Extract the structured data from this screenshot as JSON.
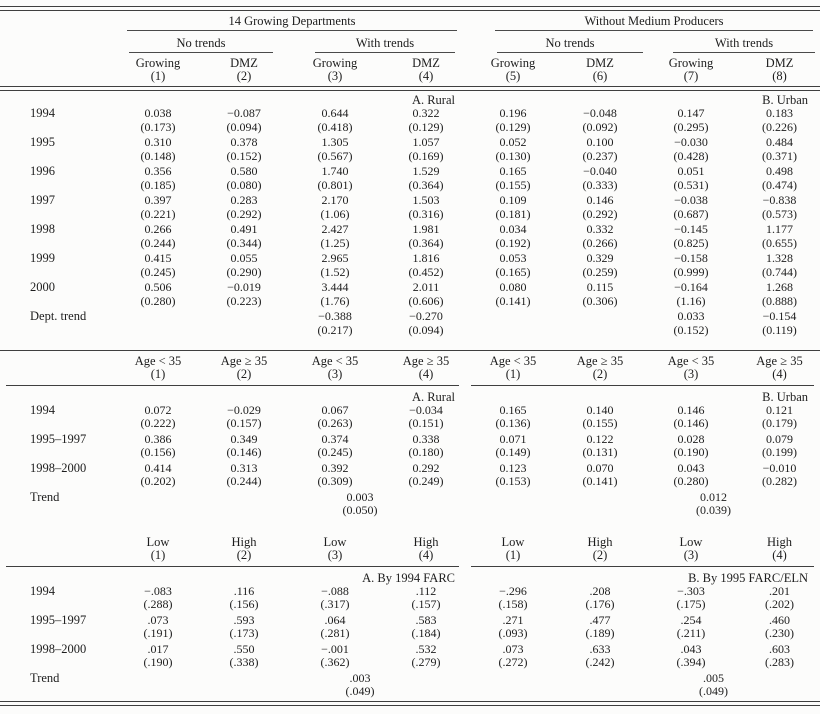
{
  "table": {
    "group_headers": [
      "14 Growing Departments",
      "Without Medium Producers"
    ],
    "subgroup_headers": [
      "No trends",
      "With trends",
      "No trends",
      "With trends"
    ],
    "sections": [
      {
        "col_headers": [
          [
            "Growing",
            "(1)"
          ],
          [
            "DMZ",
            "(2)"
          ],
          [
            "Growing",
            "(3)"
          ],
          [
            "DMZ",
            "(4)"
          ],
          [
            "Growing",
            "(5)"
          ],
          [
            "DMZ",
            "(6)"
          ],
          [
            "Growing",
            "(7)"
          ],
          [
            "DMZ",
            "(8)"
          ]
        ],
        "panel_left": "A. Rural",
        "panel_right": "B. Urban",
        "rows": [
          {
            "label": "1994",
            "coefs": [
              "0.038",
              "−0.087",
              "0.644",
              "0.322",
              "0.196",
              "−0.048",
              "0.147",
              "0.183"
            ],
            "ses": [
              "(0.173)",
              "(0.094)",
              "(0.418)",
              "(0.129)",
              "(0.129)",
              "(0.092)",
              "(0.295)",
              "(0.226)"
            ]
          },
          {
            "label": "1995",
            "coefs": [
              "0.310",
              "0.378",
              "1.305",
              "1.057",
              "0.052",
              "0.100",
              "−0.030",
              "0.484"
            ],
            "ses": [
              "(0.148)",
              "(0.152)",
              "(0.567)",
              "(0.169)",
              "(0.130)",
              "(0.237)",
              "(0.428)",
              "(0.371)"
            ]
          },
          {
            "label": "1996",
            "coefs": [
              "0.356",
              "0.580",
              "1.740",
              "1.529",
              "0.165",
              "−0.040",
              "0.051",
              "0.498"
            ],
            "ses": [
              "(0.185)",
              "(0.080)",
              "(0.801)",
              "(0.364)",
              "(0.155)",
              "(0.333)",
              "(0.531)",
              "(0.474)"
            ]
          },
          {
            "label": "1997",
            "coefs": [
              "0.397",
              "0.283",
              "2.170",
              "1.503",
              "0.109",
              "0.146",
              "−0.038",
              "−0.838"
            ],
            "ses": [
              "(0.221)",
              "(0.292)",
              "(1.06)",
              "(0.316)",
              "(0.181)",
              "(0.292)",
              "(0.687)",
              "(0.573)"
            ]
          },
          {
            "label": "1998",
            "coefs": [
              "0.266",
              "0.491",
              "2.427",
              "1.981",
              "0.034",
              "0.332",
              "−0.145",
              "1.177"
            ],
            "ses": [
              "(0.244)",
              "(0.344)",
              "(1.25)",
              "(0.364)",
              "(0.192)",
              "(0.266)",
              "(0.825)",
              "(0.655)"
            ]
          },
          {
            "label": "1999",
            "coefs": [
              "0.415",
              "0.055",
              "2.965",
              "1.816",
              "0.053",
              "0.329",
              "−0.158",
              "1.328"
            ],
            "ses": [
              "(0.245)",
              "(0.290)",
              "(1.52)",
              "(0.452)",
              "(0.165)",
              "(0.259)",
              "(0.999)",
              "(0.744)"
            ]
          },
          {
            "label": "2000",
            "coefs": [
              "0.506",
              "−0.019",
              "3.444",
              "2.011",
              "0.080",
              "0.115",
              "−0.164",
              "1.268"
            ],
            "ses": [
              "(0.280)",
              "(0.223)",
              "(1.76)",
              "(0.606)",
              "(0.141)",
              "(0.306)",
              "(1.16)",
              "(0.888)"
            ]
          },
          {
            "label": "Dept. trend",
            "coefs": [
              "",
              "",
              "−0.388",
              "−0.270",
              "",
              "",
              "0.033",
              "−0.154"
            ],
            "ses": [
              "",
              "",
              "(0.217)",
              "(0.094)",
              "",
              "",
              "(0.152)",
              "(0.119)"
            ]
          }
        ]
      },
      {
        "col_headers": [
          [
            "Age < 35",
            "(1)"
          ],
          [
            "Age ≥ 35",
            "(2)"
          ],
          [
            "Age < 35",
            "(3)"
          ],
          [
            "Age ≥ 35",
            "(4)"
          ],
          [
            "Age < 35",
            "(1)"
          ],
          [
            "Age ≥ 35",
            "(2)"
          ],
          [
            "Age < 35",
            "(3)"
          ],
          [
            "Age ≥ 35",
            "(4)"
          ]
        ],
        "panel_left": "A. Rural",
        "panel_right": "B. Urban",
        "rows": [
          {
            "label": "1994",
            "coefs": [
              "0.072",
              "−0.029",
              "0.067",
              "−0.034",
              "0.165",
              "0.140",
              "0.146",
              "0.121"
            ],
            "ses": [
              "(0.222)",
              "(0.157)",
              "(0.263)",
              "(0.151)",
              "(0.136)",
              "(0.155)",
              "(0.146)",
              "(0.179)"
            ]
          },
          {
            "label": "1995–1997",
            "coefs": [
              "0.386",
              "0.349",
              "0.374",
              "0.338",
              "0.071",
              "0.122",
              "0.028",
              "0.079"
            ],
            "ses": [
              "(0.156)",
              "(0.146)",
              "(0.245)",
              "(0.180)",
              "(0.149)",
              "(0.131)",
              "(0.190)",
              "(0.199)"
            ]
          },
          {
            "label": "1998–2000",
            "coefs": [
              "0.414",
              "0.313",
              "0.392",
              "0.292",
              "0.123",
              "0.070",
              "0.043",
              "−0.010"
            ],
            "ses": [
              "(0.202)",
              "(0.244)",
              "(0.309)",
              "(0.249)",
              "(0.153)",
              "(0.141)",
              "(0.280)",
              "(0.282)"
            ]
          },
          {
            "label": "Trend",
            "trend": true,
            "coefs": [
              "",
              "",
              "0.003",
              "",
              "",
              "",
              "0.012",
              ""
            ],
            "ses": [
              "",
              "",
              "(0.050)",
              "",
              "",
              "",
              "(0.039)",
              ""
            ]
          }
        ]
      },
      {
        "col_headers": [
          [
            "Low",
            "(1)"
          ],
          [
            "High",
            "(2)"
          ],
          [
            "Low",
            "(3)"
          ],
          [
            "High",
            "(4)"
          ],
          [
            "Low",
            "(1)"
          ],
          [
            "High",
            "(2)"
          ],
          [
            "Low",
            "(3)"
          ],
          [
            "High",
            "(4)"
          ]
        ],
        "panel_left": "A. By 1994 FARC",
        "panel_right": "B. By 1995 FARC/ELN",
        "rows": [
          {
            "label": "1994",
            "coefs": [
              "−.083",
              ".116",
              "−.088",
              ".112",
              "−.296",
              ".208",
              "−.303",
              ".201"
            ],
            "ses": [
              "(.288)",
              "(.156)",
              "(.317)",
              "(.157)",
              "(.158)",
              "(.176)",
              "(.175)",
              "(.202)"
            ]
          },
          {
            "label": "1995–1997",
            "coefs": [
              ".073",
              ".593",
              ".064",
              ".583",
              ".271",
              ".477",
              ".254",
              ".460"
            ],
            "ses": [
              "(.191)",
              "(.173)",
              "(.281)",
              "(.184)",
              "(.093)",
              "(.189)",
              "(.211)",
              "(.230)"
            ]
          },
          {
            "label": "1998–2000",
            "coefs": [
              ".017",
              ".550",
              "−.001",
              ".532",
              ".073",
              ".633",
              ".043",
              ".603"
            ],
            "ses": [
              "(.190)",
              "(.338)",
              "(.362)",
              "(.279)",
              "(.272)",
              "(.242)",
              "(.394)",
              "(.283)"
            ]
          },
          {
            "label": "Trend",
            "trend": true,
            "coefs": [
              "",
              "",
              ".003",
              "",
              "",
              "",
              ".005",
              ""
            ],
            "ses": [
              "",
              "",
              "(.049)",
              "",
              "",
              "",
              "(.049)",
              ""
            ]
          }
        ]
      }
    ]
  }
}
